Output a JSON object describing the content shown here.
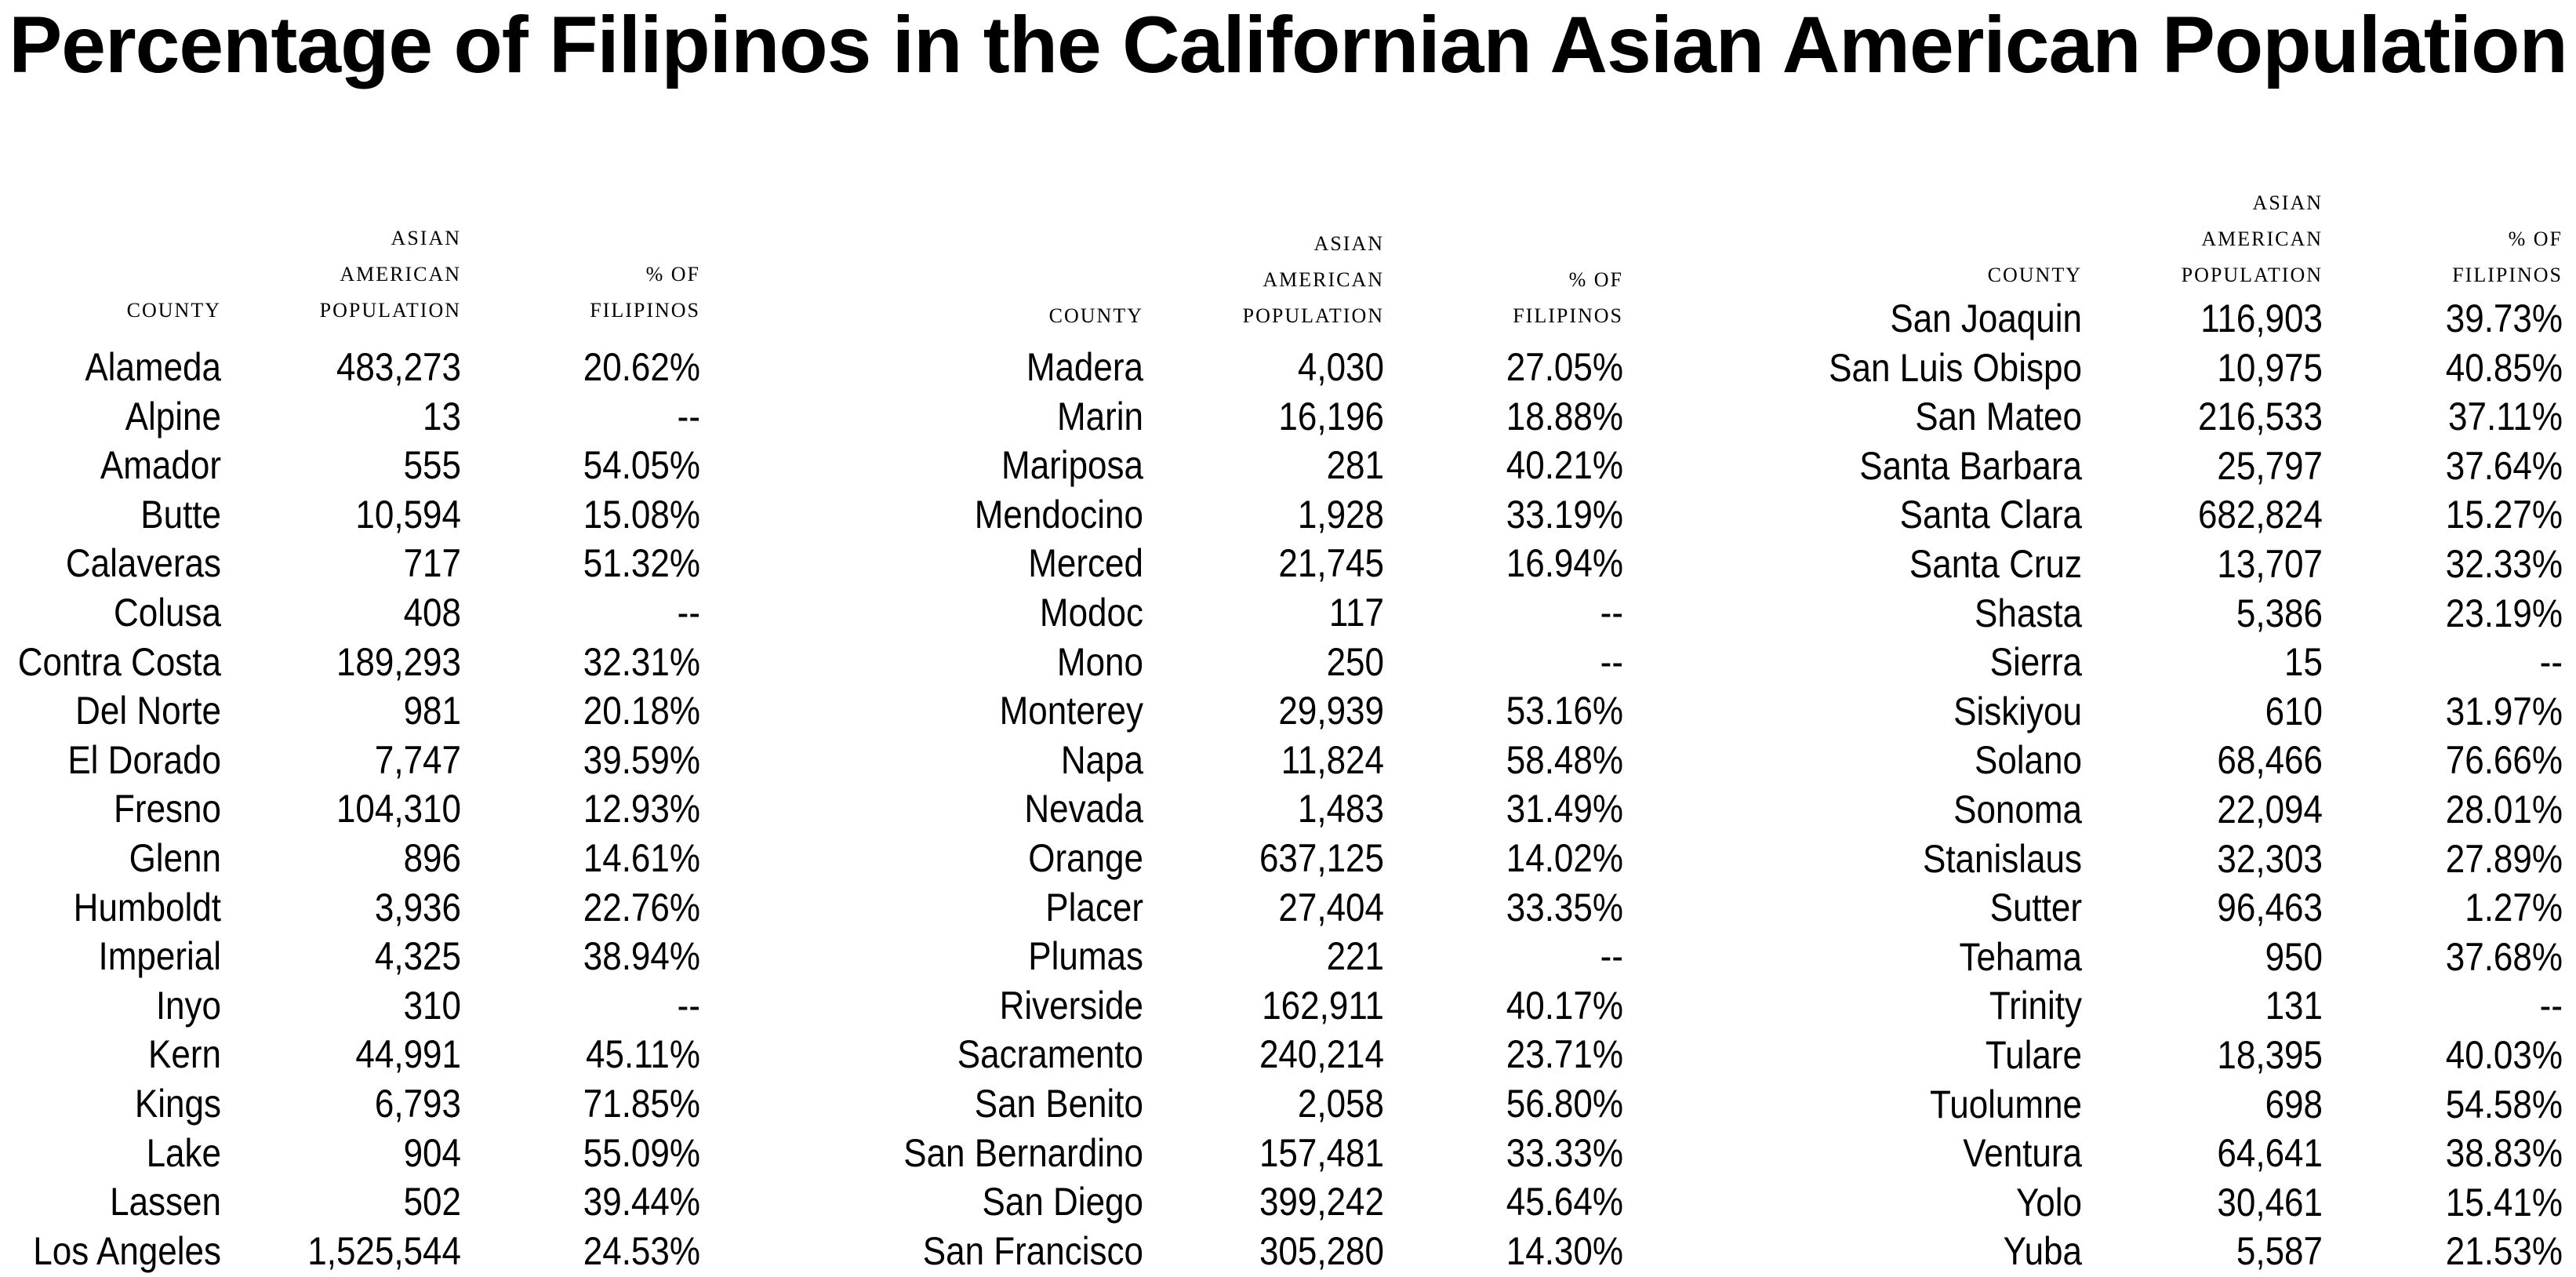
{
  "chart_data": {
    "type": "table",
    "title": "Percentage of Filipinos in the Californian Asian American Population",
    "columns": {
      "county": "County",
      "population": [
        "Asian",
        "American",
        "Population"
      ],
      "percent": [
        "% of",
        "Filipinos"
      ]
    },
    "panels": [
      {
        "rows": [
          {
            "county": "Alameda",
            "population": "483,273",
            "percent": "20.62%"
          },
          {
            "county": "Alpine",
            "population": "13",
            "percent": "--"
          },
          {
            "county": "Amador",
            "population": "555",
            "percent": "54.05%"
          },
          {
            "county": "Butte",
            "population": "10,594",
            "percent": "15.08%"
          },
          {
            "county": "Calaveras",
            "population": "717",
            "percent": "51.32%"
          },
          {
            "county": "Colusa",
            "population": "408",
            "percent": "--"
          },
          {
            "county": "Contra Costa",
            "population": "189,293",
            "percent": "32.31%"
          },
          {
            "county": "Del Norte",
            "population": "981",
            "percent": "20.18%"
          },
          {
            "county": "El Dorado",
            "population": "7,747",
            "percent": "39.59%"
          },
          {
            "county": "Fresno",
            "population": "104,310",
            "percent": "12.93%"
          },
          {
            "county": "Glenn",
            "population": "896",
            "percent": "14.61%"
          },
          {
            "county": "Humboldt",
            "population": "3,936",
            "percent": "22.76%"
          },
          {
            "county": "Imperial",
            "population": "4,325",
            "percent": "38.94%"
          },
          {
            "county": "Inyo",
            "population": "310",
            "percent": "--"
          },
          {
            "county": "Kern",
            "population": "44,991",
            "percent": "45.11%"
          },
          {
            "county": "Kings",
            "population": "6,793",
            "percent": "71.85%"
          },
          {
            "county": "Lake",
            "population": "904",
            "percent": "55.09%"
          },
          {
            "county": "Lassen",
            "population": "502",
            "percent": "39.44%"
          },
          {
            "county": "Los Angeles",
            "population": "1,525,544",
            "percent": "24.53%"
          }
        ]
      },
      {
        "rows": [
          {
            "county": "Madera",
            "population": "4,030",
            "percent": "27.05%"
          },
          {
            "county": "Marin",
            "population": "16,196",
            "percent": "18.88%"
          },
          {
            "county": "Mariposa",
            "population": "281",
            "percent": "40.21%"
          },
          {
            "county": "Mendocino",
            "population": "1,928",
            "percent": "33.19%"
          },
          {
            "county": "Merced",
            "population": "21,745",
            "percent": "16.94%"
          },
          {
            "county": "Modoc",
            "population": "117",
            "percent": "--"
          },
          {
            "county": "Mono",
            "population": "250",
            "percent": "--"
          },
          {
            "county": "Monterey",
            "population": "29,939",
            "percent": "53.16%"
          },
          {
            "county": "Napa",
            "population": "11,824",
            "percent": "58.48%"
          },
          {
            "county": "Nevada",
            "population": "1,483",
            "percent": "31.49%"
          },
          {
            "county": "Orange",
            "population": "637,125",
            "percent": "14.02%"
          },
          {
            "county": "Placer",
            "population": "27,404",
            "percent": "33.35%"
          },
          {
            "county": "Plumas",
            "population": "221",
            "percent": "--"
          },
          {
            "county": "Riverside",
            "population": "162,911",
            "percent": "40.17%"
          },
          {
            "county": "Sacramento",
            "population": "240,214",
            "percent": "23.71%"
          },
          {
            "county": "San Benito",
            "population": "2,058",
            "percent": "56.80%"
          },
          {
            "county": "San Bernardino",
            "population": "157,481",
            "percent": "33.33%"
          },
          {
            "county": "San Diego",
            "population": "399,242",
            "percent": "45.64%"
          },
          {
            "county": "San Francisco",
            "population": "305,280",
            "percent": "14.30%"
          }
        ]
      },
      {
        "rows": [
          {
            "county": "San Joaquin",
            "population": "116,903",
            "percent": "39.73%"
          },
          {
            "county": "San Luis Obispo",
            "population": "10,975",
            "percent": "40.85%"
          },
          {
            "county": "San Mateo",
            "population": "216,533",
            "percent": "37.11%"
          },
          {
            "county": "Santa Barbara",
            "population": "25,797",
            "percent": "37.64%"
          },
          {
            "county": "Santa Clara",
            "population": "682,824",
            "percent": "15.27%"
          },
          {
            "county": "Santa Cruz",
            "population": "13,707",
            "percent": "32.33%"
          },
          {
            "county": "Shasta",
            "population": "5,386",
            "percent": "23.19%"
          },
          {
            "county": "Sierra",
            "population": "15",
            "percent": "--"
          },
          {
            "county": "Siskiyou",
            "population": "610",
            "percent": "31.97%"
          },
          {
            "county": "Solano",
            "population": "68,466",
            "percent": "76.66%"
          },
          {
            "county": "Sonoma",
            "population": "22,094",
            "percent": "28.01%"
          },
          {
            "county": "Stanislaus",
            "population": "32,303",
            "percent": "27.89%"
          },
          {
            "county": "Sutter",
            "population": "96,463",
            "percent": "1.27%"
          },
          {
            "county": "Tehama",
            "population": "950",
            "percent": "37.68%"
          },
          {
            "county": "Trinity",
            "population": "131",
            "percent": "--"
          },
          {
            "county": "Tulare",
            "population": "18,395",
            "percent": "40.03%"
          },
          {
            "county": "Tuolumne",
            "population": "698",
            "percent": "54.58%"
          },
          {
            "county": "Ventura",
            "population": "64,641",
            "percent": "38.83%"
          },
          {
            "county": "Yolo",
            "population": "30,461",
            "percent": "15.41%"
          },
          {
            "county": "Yuba",
            "population": "5,587",
            "percent": "21.53%"
          }
        ]
      }
    ]
  }
}
